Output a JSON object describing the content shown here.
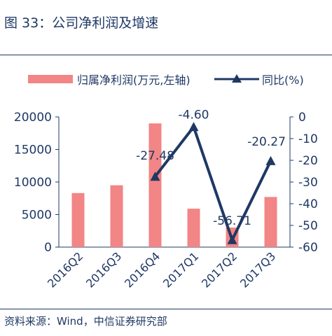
{
  "figure": {
    "title": "图 33：公司净利润及增速",
    "source": "资料来源：Wind，中信证券研究部"
  },
  "chart_data": {
    "type": "bar",
    "categories": [
      "2016Q2",
      "2016Q3",
      "2016Q4",
      "2017Q1",
      "2017Q2",
      "2017Q3"
    ],
    "series": [
      {
        "name": "归属净利润(万元,左轴)",
        "type": "bar",
        "axis": "left",
        "values": [
          8300,
          9500,
          19000,
          5900,
          3000,
          7700
        ],
        "color": "#f28585"
      },
      {
        "name": "同比(%)",
        "type": "line",
        "axis": "right",
        "values": [
          null,
          null,
          -27.48,
          -4.6,
          -56.71,
          -20.27
        ],
        "labels": [
          "",
          "",
          "-27.48",
          "-4.60",
          "-56.71",
          "-20.27"
        ],
        "color": "#1f3864"
      }
    ],
    "y_left": {
      "lim": [
        0,
        20000
      ],
      "ticks": [
        "0",
        "5000",
        "10000",
        "15000",
        "20000"
      ]
    },
    "y_right": {
      "lim": [
        -60,
        0
      ],
      "ticks": [
        "0",
        "-10",
        "-20",
        "-30",
        "-40",
        "-50",
        "-60"
      ]
    },
    "legend_position": "top",
    "grid": false
  }
}
